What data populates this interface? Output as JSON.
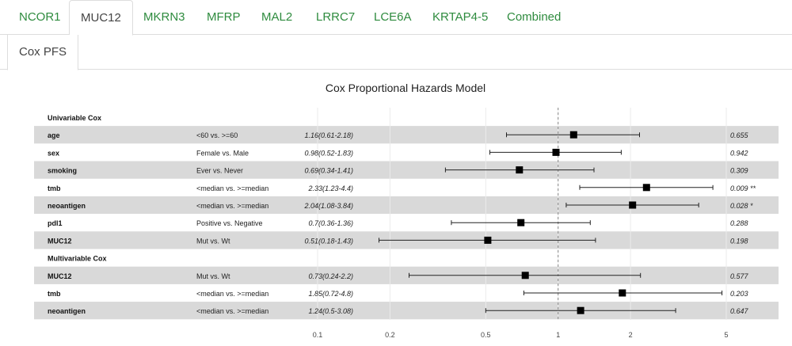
{
  "tabs": [
    {
      "label": "NCOR1",
      "active": false
    },
    {
      "label": "MUC12",
      "active": true
    },
    {
      "label": "MKRN3",
      "active": false
    },
    {
      "label": "MFRP",
      "active": false
    },
    {
      "label": "MAL2",
      "active": false
    },
    {
      "label": "LRRC7",
      "active": false
    },
    {
      "label": "LCE6A",
      "active": false
    },
    {
      "label": "KRTAP4-5",
      "active": false
    },
    {
      "label": "Combined",
      "active": false
    }
  ],
  "subtab": {
    "label": "Cox PFS"
  },
  "colors": {
    "tab_text": "#2e8b3e",
    "row_shade": "#d9d9d9",
    "marker": "#000000",
    "reference_line": "#888888"
  },
  "chart_data": {
    "type": "forest",
    "title": "Cox Proportional Hazards Model",
    "x_scale": "log",
    "xlim": [
      0.1,
      5
    ],
    "x_ticks": [
      0.1,
      0.2,
      0.5,
      1,
      2,
      5
    ],
    "x_tick_labels": [
      "0.1",
      "0.2",
      "0.5",
      "1",
      "2",
      "5"
    ],
    "reference_value": 1,
    "rows": [
      {
        "kind": "header",
        "label": "Univariable Cox"
      },
      {
        "kind": "row",
        "variable": "age",
        "comparison": "<60 vs. >=60",
        "hr": 1.16,
        "lower": 0.61,
        "upper": 2.18,
        "ci_text": "1.16(0.61-2.18)",
        "p_text": "0.655",
        "shaded": true
      },
      {
        "kind": "row",
        "variable": "sex",
        "comparison": "Female vs. Male",
        "hr": 0.98,
        "lower": 0.52,
        "upper": 1.83,
        "ci_text": "0.98(0.52-1.83)",
        "p_text": "0.942",
        "shaded": false
      },
      {
        "kind": "row",
        "variable": "smoking",
        "comparison": "Ever vs. Never",
        "hr": 0.69,
        "lower": 0.34,
        "upper": 1.41,
        "ci_text": "0.69(0.34-1.41)",
        "p_text": "0.309",
        "shaded": true
      },
      {
        "kind": "row",
        "variable": "tmb",
        "comparison": "<median vs. >=median",
        "hr": 2.33,
        "lower": 1.23,
        "upper": 4.4,
        "ci_text": "2.33(1.23-4.4)",
        "p_text": "0.009 **",
        "shaded": false
      },
      {
        "kind": "row",
        "variable": "neoantigen",
        "comparison": "<median vs. >=median",
        "hr": 2.04,
        "lower": 1.08,
        "upper": 3.84,
        "ci_text": "2.04(1.08-3.84)",
        "p_text": "0.028 *",
        "shaded": true
      },
      {
        "kind": "row",
        "variable": "pdl1",
        "comparison": "Positive vs. Negative",
        "hr": 0.7,
        "lower": 0.36,
        "upper": 1.36,
        "ci_text": "0.7(0.36-1.36)",
        "p_text": "0.288",
        "shaded": false
      },
      {
        "kind": "row",
        "variable": "MUC12",
        "comparison": "Mut vs. Wt",
        "hr": 0.51,
        "lower": 0.18,
        "upper": 1.43,
        "ci_text": "0.51(0.18-1.43)",
        "p_text": "0.198",
        "shaded": true
      },
      {
        "kind": "header",
        "label": "Multivariable Cox"
      },
      {
        "kind": "row",
        "variable": "MUC12",
        "comparison": "Mut vs. Wt",
        "hr": 0.73,
        "lower": 0.24,
        "upper": 2.2,
        "ci_text": "0.73(0.24-2.2)",
        "p_text": "0.577",
        "shaded": true
      },
      {
        "kind": "row",
        "variable": "tmb",
        "comparison": "<median vs. >=median",
        "hr": 1.85,
        "lower": 0.72,
        "upper": 4.8,
        "ci_text": "1.85(0.72-4.8)",
        "p_text": "0.203",
        "shaded": false
      },
      {
        "kind": "row",
        "variable": "neoantigen",
        "comparison": "<median vs. >=median",
        "hr": 1.24,
        "lower": 0.5,
        "upper": 3.08,
        "ci_text": "1.24(0.5-3.08)",
        "p_text": "0.647",
        "shaded": true
      }
    ]
  }
}
